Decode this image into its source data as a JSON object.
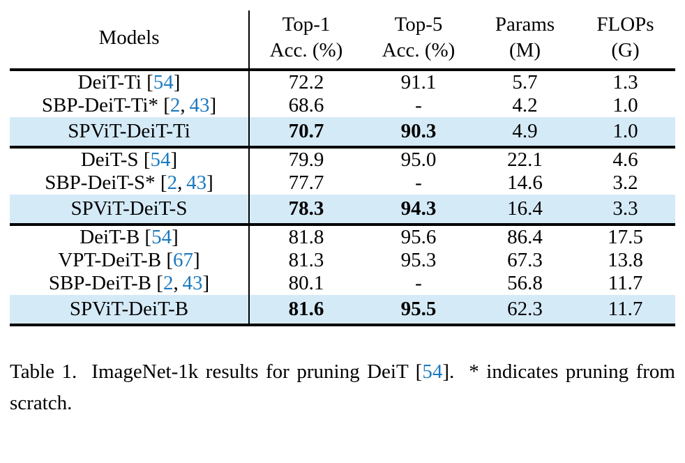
{
  "colors": {
    "cite_blue": "#1b79c0",
    "highlight_row": "#d5eaf7",
    "rule_black": "#000000"
  },
  "table": {
    "headers": [
      {
        "line1": "Models",
        "line2": ""
      },
      {
        "line1": "Top-1",
        "line2": "Acc. (%)"
      },
      {
        "line1": "Top-5",
        "line2": "Acc. (%)"
      },
      {
        "line1": "Params",
        "line2": "(M)"
      },
      {
        "line1": "FLOPs",
        "line2": "(G)"
      }
    ],
    "groups": [
      {
        "rows": [
          {
            "model": "DeiT-Ti",
            "cites": [
              "54"
            ],
            "top1": "72.2",
            "top5": "91.1",
            "params": "5.7",
            "flops": "1.3",
            "highlight": false,
            "bold_acc": false
          },
          {
            "model": "SBP-DeiT-Ti*",
            "cites": [
              "2",
              "43"
            ],
            "top1": "68.6",
            "top5": "-",
            "params": "4.2",
            "flops": "1.0",
            "highlight": false,
            "bold_acc": false
          },
          {
            "model": "SPViT-DeiT-Ti",
            "cites": [],
            "top1": "70.7",
            "top5": "90.3",
            "params": "4.9",
            "flops": "1.0",
            "highlight": true,
            "bold_acc": true
          }
        ]
      },
      {
        "rows": [
          {
            "model": "DeiT-S",
            "cites": [
              "54"
            ],
            "top1": "79.9",
            "top5": "95.0",
            "params": "22.1",
            "flops": "4.6",
            "highlight": false,
            "bold_acc": false
          },
          {
            "model": "SBP-DeiT-S*",
            "cites": [
              "2",
              "43"
            ],
            "top1": "77.7",
            "top5": "-",
            "params": "14.6",
            "flops": "3.2",
            "highlight": false,
            "bold_acc": false
          },
          {
            "model": "SPViT-DeiT-S",
            "cites": [],
            "top1": "78.3",
            "top5": "94.3",
            "params": "16.4",
            "flops": "3.3",
            "highlight": true,
            "bold_acc": true
          }
        ]
      },
      {
        "rows": [
          {
            "model": "DeiT-B",
            "cites": [
              "54"
            ],
            "top1": "81.8",
            "top5": "95.6",
            "params": "86.4",
            "flops": "17.5",
            "highlight": false,
            "bold_acc": false
          },
          {
            "model": "VPT-DeiT-B",
            "cites": [
              "67"
            ],
            "top1": "81.3",
            "top5": "95.3",
            "params": "67.3",
            "flops": "13.8",
            "highlight": false,
            "bold_acc": false
          },
          {
            "model": "SBP-DeiT-B",
            "cites": [
              "2",
              "43"
            ],
            "top1": "80.1",
            "top5": "-",
            "params": "56.8",
            "flops": "11.7",
            "highlight": false,
            "bold_acc": false
          },
          {
            "model": "SPViT-DeiT-B",
            "cites": [],
            "top1": "81.6",
            "top5": "95.5",
            "params": "62.3",
            "flops": "11.7",
            "highlight": true,
            "bold_acc": true
          }
        ]
      }
    ]
  },
  "caption": {
    "prefix": "Table 1.  ImageNet-1k results for pruning DeiT [",
    "cite": "54",
    "suffix": "].  * indicates pruning from scratch."
  }
}
